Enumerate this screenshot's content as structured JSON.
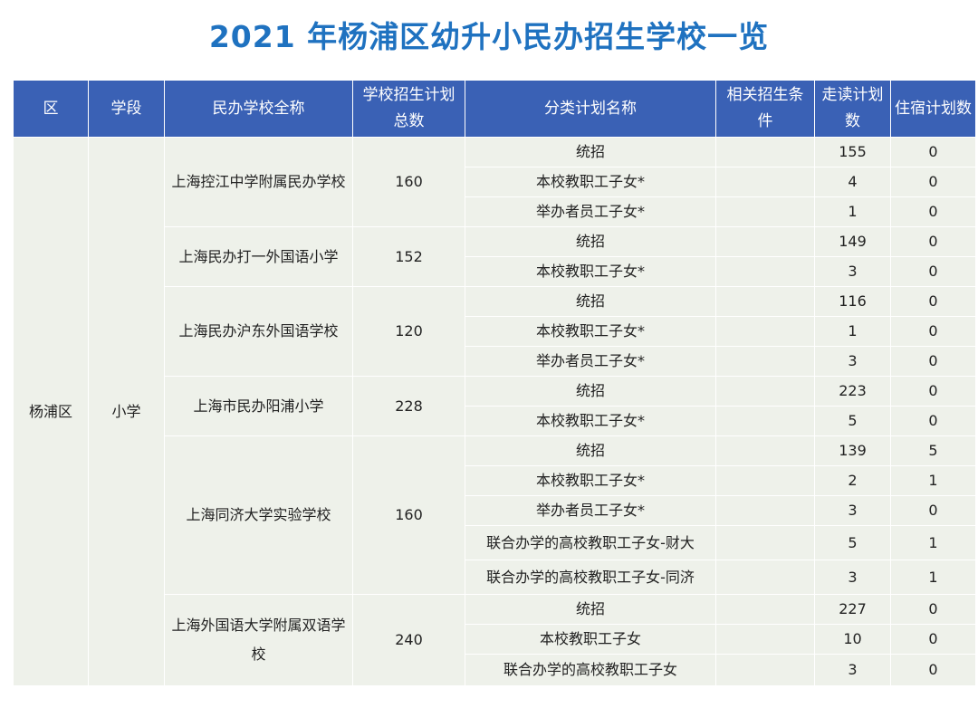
{
  "title": "2021 年杨浦区幼升小民办招生学校一览",
  "headers": [
    "区",
    "学段",
    "民办学校全称",
    "学校招生计划总数",
    "分类计划名称",
    "相关招生条件",
    "走读计划数",
    "住宿计划数"
  ],
  "district": "杨浦区",
  "stage": "小学",
  "schools": [
    {
      "name": "上海控江中学附属民办学校",
      "total": "160",
      "rows": [
        {
          "category": "统招",
          "condition": "",
          "day": "155",
          "boarding": "0"
        },
        {
          "category": "本校教职工子女*",
          "condition": "",
          "day": "4",
          "boarding": "0"
        },
        {
          "category": "举办者员工子女*",
          "condition": "",
          "day": "1",
          "boarding": "0"
        }
      ]
    },
    {
      "name": "上海民办打一外国语小学",
      "total": "152",
      "rows": [
        {
          "category": "统招",
          "condition": "",
          "day": "149",
          "boarding": "0"
        },
        {
          "category": "本校教职工子女*",
          "condition": "",
          "day": "3",
          "boarding": "0"
        }
      ]
    },
    {
      "name": "上海民办沪东外国语学校",
      "total": "120",
      "rows": [
        {
          "category": "统招",
          "condition": "",
          "day": "116",
          "boarding": "0"
        },
        {
          "category": "本校教职工子女*",
          "condition": "",
          "day": "1",
          "boarding": "0"
        },
        {
          "category": "举办者员工子女*",
          "condition": "",
          "day": "3",
          "boarding": "0"
        }
      ]
    },
    {
      "name": "上海市民办阳浦小学",
      "total": "228",
      "rows": [
        {
          "category": "统招",
          "condition": "",
          "day": "223",
          "boarding": "0"
        },
        {
          "category": "本校教职工子女*",
          "condition": "",
          "day": "5",
          "boarding": "0"
        }
      ]
    },
    {
      "name": "上海同济大学实验学校",
      "total": "160",
      "rows": [
        {
          "category": "统招",
          "condition": "",
          "day": "139",
          "boarding": "5"
        },
        {
          "category": "本校教职工子女*",
          "condition": "",
          "day": "2",
          "boarding": "1"
        },
        {
          "category": "举办者员工子女*",
          "condition": "",
          "day": "3",
          "boarding": "0"
        },
        {
          "category": "联合办学的高校教职工子女-财大",
          "condition": "",
          "day": "5",
          "boarding": "1"
        },
        {
          "category": "联合办学的高校教职工子女-同济",
          "condition": "",
          "day": "3",
          "boarding": "1"
        }
      ]
    },
    {
      "name": "上海外国语大学附属双语学校",
      "total": "240",
      "rows": [
        {
          "category": "统招",
          "condition": "",
          "day": "227",
          "boarding": "0"
        },
        {
          "category": "本校教职工子女",
          "condition": "",
          "day": "10",
          "boarding": "0"
        },
        {
          "category": "联合办学的高校教职工子女",
          "condition": "",
          "day": "3",
          "boarding": "0"
        }
      ]
    }
  ]
}
